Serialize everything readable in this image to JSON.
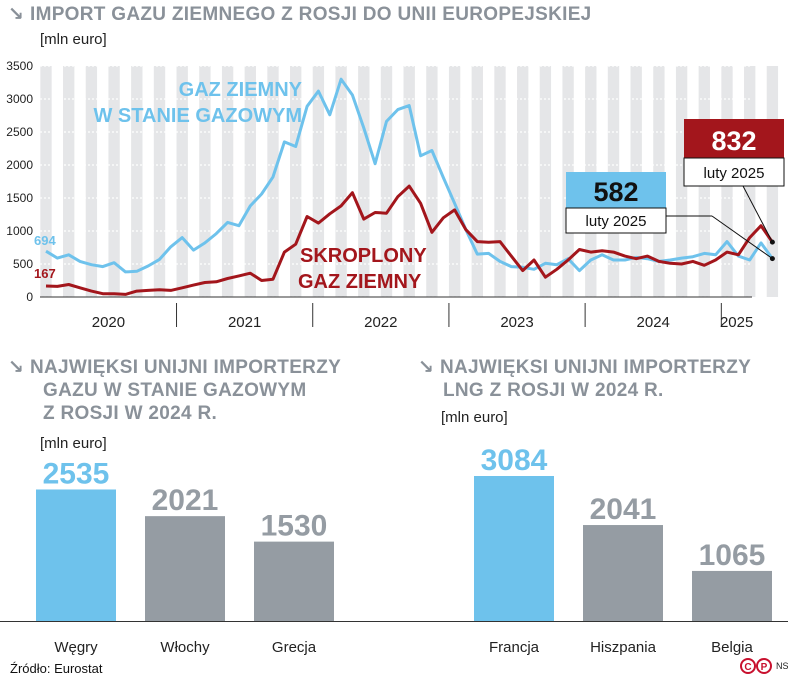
{
  "main": {
    "title": "IMPORT GAZU ZIEMNEGO Z ROSJI DO UNII EUROPEJSKIEJ",
    "unit": "[mln euro]"
  },
  "left_panel": {
    "title_lines": [
      "NAJWIĘKSI UNIJNI IMPORTERZY",
      "GAZU W STANIE GAZOWYM",
      "Z ROSJI W 2024 R."
    ],
    "unit": "[mln euro]"
  },
  "right_panel": {
    "title_lines": [
      "NAJWIĘKSI UNIJNI IMPORTERZY",
      "LNG Z ROSJI W 2024 R."
    ],
    "unit": "[mln euro]"
  },
  "footer": {
    "source": "Źródło: Eurostat",
    "credit": "NS"
  },
  "colors": {
    "blue": "#6ec2ec",
    "red": "#a3161c",
    "grey": "#959ca3",
    "title_grey": "#8a9199"
  },
  "chart_data": [
    {
      "type": "line",
      "ylim": [
        0,
        3500
      ],
      "yticks": [
        "0",
        "500",
        "1000",
        "1500",
        "2000",
        "2500",
        "3000",
        "3500"
      ],
      "x_start": "2020-01",
      "years": [
        "2020",
        "2021",
        "2022",
        "2023",
        "2024",
        "2025"
      ],
      "series": [
        {
          "name": "GAZ ZIEMNY W STANIE GAZOWYM",
          "name_lines": [
            "GAZ ZIEMNY",
            "W STANIE GAZOWYM"
          ],
          "color": "#6ec2ec",
          "values": [
            694,
            590,
            640,
            540,
            490,
            460,
            520,
            380,
            390,
            470,
            570,
            760,
            900,
            710,
            820,
            960,
            1130,
            1080,
            1380,
            1560,
            1820,
            2350,
            2280,
            2890,
            3120,
            2760,
            3300,
            3060,
            2560,
            2020,
            2660,
            2840,
            2900,
            2140,
            2220,
            1810,
            1420,
            1020,
            650,
            660,
            540,
            460,
            450,
            420,
            510,
            490,
            580,
            400,
            560,
            640,
            560,
            560,
            600,
            580,
            540,
            560,
            590,
            610,
            660,
            640,
            840,
            620,
            560,
            820,
            582
          ],
          "start_label": "694",
          "end_label": "582",
          "end_date": "luty 2025"
        },
        {
          "name": "SKROPLONY GAZ ZIEMNY",
          "name_lines": [
            "SKROPLONY",
            "GAZ ZIEMNY"
          ],
          "color": "#a3161c",
          "values": [
            167,
            160,
            190,
            140,
            90,
            50,
            50,
            40,
            90,
            100,
            110,
            100,
            140,
            180,
            220,
            230,
            280,
            320,
            360,
            250,
            270,
            680,
            800,
            1220,
            1120,
            1260,
            1380,
            1580,
            1180,
            1280,
            1270,
            1520,
            1680,
            1420,
            980,
            1200,
            1320,
            1020,
            840,
            830,
            840,
            620,
            400,
            560,
            300,
            420,
            560,
            720,
            680,
            700,
            680,
            620,
            580,
            620,
            540,
            510,
            500,
            540,
            480,
            560,
            680,
            640,
            900,
            1080,
            832
          ],
          "start_label": "167",
          "end_label": "832",
          "end_date": "luty 2025"
        }
      ]
    },
    {
      "type": "bar",
      "categories": [
        "Węgry",
        "Włochy",
        "Grecja"
      ],
      "values": [
        2535,
        2021,
        1530
      ],
      "value_labels": [
        "2535",
        "2021",
        "1530"
      ],
      "highlight_index": 0
    },
    {
      "type": "bar",
      "categories": [
        "Francja",
        "Hiszpania",
        "Belgia"
      ],
      "values": [
        3084,
        2041,
        1065
      ],
      "value_labels": [
        "3084",
        "2041",
        "1065"
      ],
      "highlight_index": 0
    }
  ]
}
